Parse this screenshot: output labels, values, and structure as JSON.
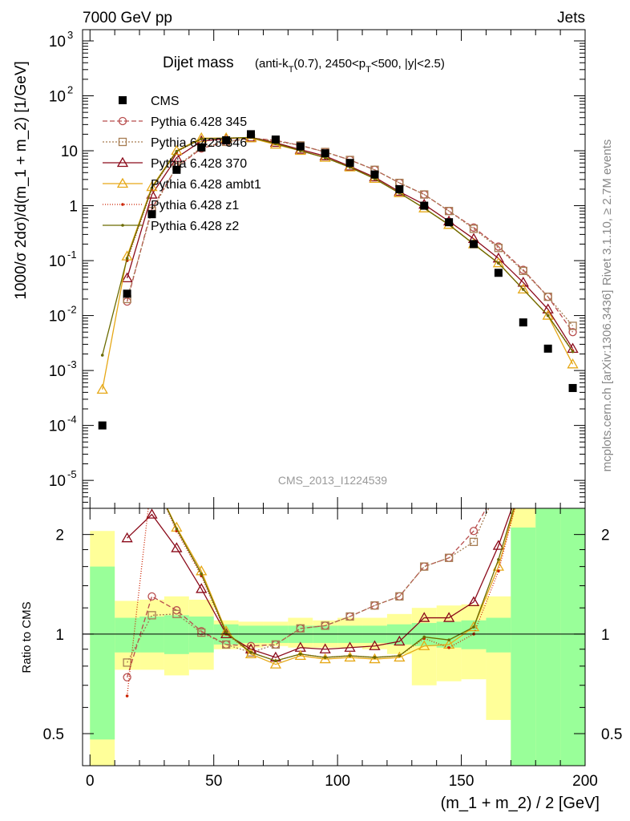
{
  "header": {
    "left": "7000 GeV pp",
    "right": "Jets",
    "side_rivet": "Rivet 3.1.10, ≥ 2.7M events",
    "side_mcplots": "mcplots.cern.ch [arXiv:1306.3436]",
    "analysis_id": "CMS_2013_I1224539"
  },
  "chart_data": {
    "type": "scatter",
    "title": "Dijet mass",
    "title_cuts": [
      "(anti-k",
      "T",
      "(0.7), 2450<p",
      "T",
      "<500, |y|<2.5)"
    ],
    "xlabel": "(m_1 + m_2) / 2 [GeV]",
    "ylabel": "1000/σ 2dσ)/d(m_1 + m_2) [1/GeV]",
    "ratio_ylabel": "Ratio to CMS",
    "xlim": [
      -3,
      200
    ],
    "ylim": [
      3.1e-06,
      1600
    ],
    "ylog": true,
    "ratio_ylim": [
      0.4,
      2.4
    ],
    "ratio_ylog": true,
    "x_ticks": [
      "0",
      "50",
      "100",
      "150",
      "200"
    ],
    "y_ticks": [
      {
        "base": "10",
        "exp": "3"
      },
      {
        "base": "10",
        "exp": "2"
      },
      {
        "base": "10",
        "exp": ""
      },
      {
        "base": "1",
        "exp": ""
      },
      {
        "base": "10",
        "exp": "-1"
      },
      {
        "base": "10",
        "exp": "-2"
      },
      {
        "base": "10",
        "exp": "-3"
      },
      {
        "base": "10",
        "exp": "-4"
      },
      {
        "base": "10",
        "exp": "-5"
      }
    ],
    "ratio_ticks": [
      "2",
      "1",
      "0.5"
    ],
    "x": [
      5,
      15,
      25,
      35,
      45,
      55,
      65,
      75,
      85,
      95,
      105,
      115,
      125,
      135,
      145,
      155,
      165,
      175,
      185,
      195
    ],
    "data": {
      "name": "CMS",
      "values": [
        0.0001,
        0.025,
        0.7,
        4.5,
        11.5,
        15.5,
        20.0,
        16.0,
        12.0,
        9.0,
        6.0,
        3.7,
        2.0,
        1.0,
        0.5,
        0.2,
        0.06,
        0.0075,
        0.0025,
        0.00048
      ]
    },
    "series": [
      {
        "name": "Pythia 6.428 345",
        "color": "#b84d4d",
        "marker": "circle",
        "dash": "6,3",
        "values": [
          null,
          0.018,
          0.9,
          5.0,
          11.0,
          14.5,
          17.0,
          15.5,
          12.5,
          9.5,
          6.8,
          4.5,
          2.6,
          1.6,
          0.8,
          0.4,
          0.18,
          0.068,
          0.022,
          0.005
        ],
        "ratio": [
          null,
          0.74,
          1.3,
          1.18,
          1.02,
          0.93,
          0.92,
          0.93,
          1.04,
          1.06,
          1.13,
          1.22,
          1.3,
          1.6,
          1.7,
          2.05,
          2.8,
          3.0,
          3.0,
          3.0
        ]
      },
      {
        "name": "Pythia 6.428 346",
        "color": "#a67c52",
        "marker": "square",
        "dash": "2,2",
        "values": [
          null,
          0.02,
          0.8,
          5.2,
          11.5,
          14.5,
          17.0,
          15.0,
          12.5,
          9.5,
          6.8,
          4.5,
          2.6,
          1.6,
          0.8,
          0.38,
          0.17,
          0.065,
          0.022,
          0.0065
        ],
        "ratio": [
          null,
          0.82,
          1.14,
          1.15,
          1.01,
          0.93,
          0.88,
          0.93,
          1.04,
          1.06,
          1.13,
          1.22,
          1.3,
          1.6,
          1.7,
          1.9,
          2.8,
          3.0,
          3.0,
          3.0
        ]
      },
      {
        "name": "Pythia 6.428 370",
        "color": "#8b0a1a",
        "marker": "triangle",
        "dash": "",
        "values": [
          null,
          0.048,
          1.6,
          7.5,
          15.0,
          16.5,
          17.5,
          14.0,
          10.5,
          8.0,
          5.2,
          3.3,
          1.8,
          1.05,
          0.52,
          0.25,
          0.11,
          0.04,
          0.013,
          0.0025
        ],
        "ratio": [
          null,
          1.95,
          2.3,
          1.82,
          1.37,
          1.0,
          0.9,
          0.85,
          0.91,
          0.9,
          0.91,
          0.92,
          0.95,
          1.12,
          1.12,
          1.25,
          1.85,
          3.0,
          3.0,
          3.0
        ]
      },
      {
        "name": "Pythia 6.428 ambt1",
        "color": "#e6a817",
        "marker": "triangle",
        "dash": "",
        "values": [
          0.00045,
          0.12,
          2.2,
          10.0,
          17.0,
          17.0,
          17.0,
          13.0,
          10.0,
          7.5,
          5.0,
          3.1,
          1.7,
          0.9,
          0.45,
          0.2,
          0.09,
          0.03,
          0.01,
          0.0013
        ],
        "ratio": [
          null,
          null,
          3.0,
          2.1,
          1.55,
          1.02,
          0.87,
          0.81,
          0.86,
          0.84,
          0.85,
          0.84,
          0.85,
          0.92,
          0.93,
          1.05,
          1.6,
          3.0,
          3.0,
          3.0
        ]
      },
      {
        "name": "Pythia 6.428 z1",
        "color": "#cc2200",
        "marker": "dot",
        "dash": "1,2",
        "values": [
          null,
          0.1,
          2.0,
          9.5,
          16.5,
          17.0,
          17.5,
          13.5,
          10.0,
          7.5,
          5.0,
          3.1,
          1.7,
          0.9,
          0.45,
          0.2,
          0.09,
          0.03,
          0.01,
          0.0023
        ],
        "ratio": [
          null,
          0.65,
          3.0,
          2.05,
          1.5,
          1.0,
          0.88,
          0.83,
          0.87,
          0.85,
          0.86,
          0.85,
          0.86,
          0.97,
          0.91,
          1.0,
          1.55,
          3.0,
          3.0,
          3.0
        ]
      },
      {
        "name": "Pythia 6.428 z2",
        "color": "#6b6b00",
        "marker": "dot",
        "dash": "",
        "values": [
          0.0019,
          0.11,
          2.1,
          9.8,
          16.5,
          17.0,
          17.5,
          13.5,
          10.0,
          7.5,
          5.0,
          3.1,
          1.7,
          0.9,
          0.45,
          0.2,
          0.09,
          0.03,
          0.01,
          0.0022
        ],
        "ratio": [
          null,
          null,
          3.0,
          2.08,
          1.52,
          1.01,
          0.88,
          0.83,
          0.87,
          0.85,
          0.86,
          0.85,
          0.86,
          0.98,
          0.96,
          1.05,
          1.68,
          3.0,
          3.0,
          3.0
        ]
      }
    ],
    "bands": {
      "edges": [
        0,
        10,
        20,
        30,
        40,
        50,
        60,
        70,
        80,
        90,
        100,
        110,
        120,
        130,
        140,
        150,
        160,
        170,
        180,
        190,
        200
      ],
      "green": [
        [
          0.48,
          1.6
        ],
        [
          0.88,
          1.12
        ],
        [
          0.88,
          1.13
        ],
        [
          0.87,
          1.14
        ],
        [
          0.88,
          1.13
        ],
        [
          0.93,
          1.07
        ],
        [
          0.94,
          1.06
        ],
        [
          0.94,
          1.06
        ],
        [
          0.94,
          1.06
        ],
        [
          0.94,
          1.06
        ],
        [
          0.94,
          1.06
        ],
        [
          0.94,
          1.06
        ],
        [
          0.93,
          1.07
        ],
        [
          0.92,
          1.08
        ],
        [
          0.91,
          1.09
        ],
        [
          0.9,
          1.1
        ],
        [
          0.88,
          1.12
        ],
        [
          0.4,
          2.1
        ],
        [
          0.4,
          2.4
        ],
        [
          0.4,
          2.4
        ]
      ],
      "yellow": [
        [
          0.4,
          2.05
        ],
        [
          0.78,
          1.26
        ],
        [
          0.78,
          1.27
        ],
        [
          0.75,
          1.3
        ],
        [
          0.78,
          1.27
        ],
        [
          0.9,
          1.1
        ],
        [
          0.91,
          1.09
        ],
        [
          0.92,
          1.09
        ],
        [
          0.91,
          1.12
        ],
        [
          0.91,
          1.1
        ],
        [
          0.91,
          1.12
        ],
        [
          0.9,
          1.12
        ],
        [
          0.87,
          1.15
        ],
        [
          0.7,
          1.2
        ],
        [
          0.72,
          1.22
        ],
        [
          0.73,
          1.23
        ],
        [
          0.55,
          1.3
        ],
        [
          0.4,
          2.4
        ],
        [
          0.4,
          2.4
        ],
        [
          0.4,
          2.4
        ]
      ]
    }
  }
}
